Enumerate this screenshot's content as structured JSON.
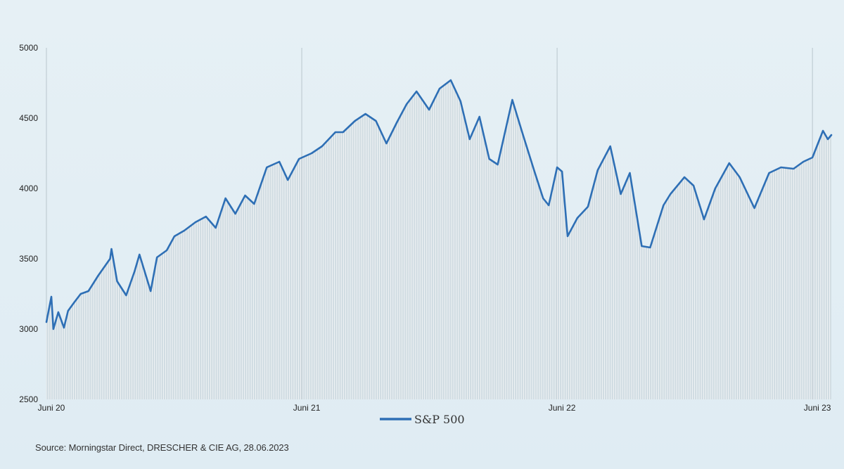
{
  "chart_data": {
    "type": "area",
    "title": "",
    "xlabel": "",
    "ylabel": "",
    "ylim": [
      2500,
      5000
    ],
    "yticks": [
      2500,
      3000,
      3500,
      4000,
      4500,
      5000
    ],
    "x_tick_labels": [
      "Juni 20",
      "Juni 21",
      "Juni 22",
      "Juni 23"
    ],
    "x_range": [
      "2020-06-01",
      "2023-06-28"
    ],
    "x_ticks": [
      "2020-06-01",
      "2021-06-01",
      "2022-06-01",
      "2023-06-01"
    ],
    "grid": {
      "vertical": true,
      "horizontal": false
    },
    "legend": {
      "position": "bottom-center"
    },
    "series": [
      {
        "name": "S&P 500",
        "color": "#2e6fb5",
        "fill_color": "#c2cdd3",
        "x": [
          "2020-06-01",
          "2020-06-08",
          "2020-06-11",
          "2020-06-18",
          "2020-06-26",
          "2020-07-02",
          "2020-07-10",
          "2020-07-20",
          "2020-07-31",
          "2020-08-14",
          "2020-08-31",
          "2020-09-02",
          "2020-09-10",
          "2020-09-23",
          "2020-10-05",
          "2020-10-12",
          "2020-10-28",
          "2020-11-06",
          "2020-11-20",
          "2020-12-01",
          "2020-12-15",
          "2020-12-31",
          "2021-01-15",
          "2021-01-29",
          "2021-02-12",
          "2021-02-26",
          "2021-03-12",
          "2021-03-25",
          "2021-04-12",
          "2021-04-30",
          "2021-05-12",
          "2021-05-28",
          "2021-06-15",
          "2021-06-30",
          "2021-07-19",
          "2021-07-30",
          "2021-08-16",
          "2021-08-31",
          "2021-09-15",
          "2021-09-30",
          "2021-10-15",
          "2021-10-29",
          "2021-11-12",
          "2021-11-30",
          "2021-12-15",
          "2021-12-31",
          "2022-01-14",
          "2022-01-27",
          "2022-02-10",
          "2022-02-24",
          "2022-03-08",
          "2022-03-29",
          "2022-04-12",
          "2022-04-29",
          "2022-05-12",
          "2022-05-20",
          "2022-06-01",
          "2022-06-08",
          "2022-06-16",
          "2022-06-30",
          "2022-07-15",
          "2022-07-29",
          "2022-08-16",
          "2022-08-31",
          "2022-09-13",
          "2022-09-30",
          "2022-10-12",
          "2022-10-31",
          "2022-11-10",
          "2022-11-30",
          "2022-12-13",
          "2022-12-28",
          "2023-01-13",
          "2023-02-02",
          "2023-02-17",
          "2023-03-10",
          "2023-03-31",
          "2023-04-17",
          "2023-05-05",
          "2023-05-19",
          "2023-06-01",
          "2023-06-16",
          "2023-06-23",
          "2023-06-28"
        ],
        "values": [
          3050,
          3230,
          3000,
          3120,
          3010,
          3130,
          3185,
          3250,
          3270,
          3380,
          3500,
          3570,
          3340,
          3240,
          3410,
          3530,
          3270,
          3510,
          3560,
          3660,
          3700,
          3760,
          3800,
          3720,
          3930,
          3820,
          3950,
          3890,
          4150,
          4190,
          4060,
          4210,
          4250,
          4300,
          4400,
          4400,
          4480,
          4530,
          4480,
          4320,
          4470,
          4600,
          4690,
          4560,
          4710,
          4770,
          4620,
          4350,
          4510,
          4210,
          4170,
          4630,
          4400,
          4130,
          3930,
          3880,
          4150,
          4120,
          3660,
          3790,
          3870,
          4130,
          4300,
          3960,
          4110,
          3590,
          3580,
          3880,
          3960,
          4080,
          4020,
          3780,
          4000,
          4180,
          4080,
          3860,
          4110,
          4150,
          4140,
          4190,
          4220,
          4410,
          4350,
          4380
        ]
      }
    ]
  },
  "source_text": "Source: Morningstar Direct, DRESCHER & CIE AG, 28.06.2023"
}
